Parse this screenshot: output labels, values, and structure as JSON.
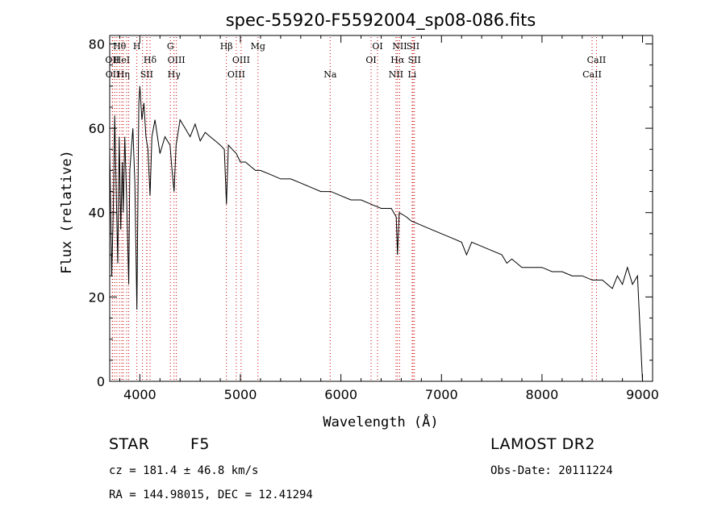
{
  "chart_data": {
    "type": "line",
    "title": "spec-55920-F5592004_sp08-086.fits",
    "xlabel": "Wavelength (Å)",
    "ylabel": "Flux (relative)",
    "xlim": [
      3700,
      9100
    ],
    "ylim": [
      0,
      82
    ],
    "xticks": [
      4000,
      5000,
      6000,
      7000,
      8000,
      9000
    ],
    "yticks": [
      0,
      20,
      40,
      60,
      80
    ],
    "grid": false,
    "series": [
      {
        "x": [
          3700,
          3720,
          3735,
          3750,
          3765,
          3780,
          3795,
          3810,
          3825,
          3835,
          3850,
          3870,
          3889,
          3900,
          3930,
          3950,
          3970,
          3990,
          4000,
          4020,
          4040,
          4060,
          4080,
          4101,
          4120,
          4150,
          4200,
          4250,
          4300,
          4320,
          4340,
          4360,
          4400,
          4450,
          4500,
          4550,
          4600,
          4650,
          4700,
          4750,
          4800,
          4840,
          4861,
          4880,
          4920,
          4960,
          5000,
          5050,
          5100,
          5150,
          5200,
          5300,
          5400,
          5500,
          5600,
          5700,
          5800,
          5900,
          6000,
          6100,
          6200,
          6300,
          6400,
          6500,
          6550,
          6563,
          6580,
          6650,
          6700,
          6800,
          6900,
          7000,
          7100,
          7200,
          7250,
          7300,
          7400,
          7500,
          7600,
          7650,
          7700,
          7800,
          7900,
          8000,
          8100,
          8200,
          8300,
          8400,
          8500,
          8600,
          8700,
          8750,
          8800,
          8850,
          8900,
          8950,
          8980,
          9000
        ],
        "y": [
          55,
          25,
          40,
          63,
          45,
          28,
          58,
          36,
          52,
          40,
          58,
          42,
          23,
          50,
          60,
          47,
          17,
          66,
          70,
          62,
          66,
          58,
          55,
          44,
          58,
          62,
          54,
          58,
          56,
          50,
          45,
          56,
          62,
          60,
          58,
          61,
          57,
          59,
          58,
          57,
          56,
          55,
          42,
          56,
          55,
          54,
          52,
          52,
          51,
          50,
          50,
          49,
          48,
          48,
          47,
          46,
          45,
          45,
          44,
          43,
          43,
          42,
          41,
          41,
          39,
          30,
          40,
          39,
          38,
          37,
          36,
          35,
          34,
          33,
          30,
          33,
          32,
          31,
          30,
          28,
          29,
          27,
          27,
          27,
          26,
          26,
          25,
          25,
          24,
          24,
          22,
          25,
          23,
          27,
          23,
          25,
          10,
          0
        ]
      }
    ],
    "annotations": [
      {
        "wl": 3726,
        "label": "OII",
        "row": 1
      },
      {
        "wl": 3729,
        "label": "OII",
        "row": 2
      },
      {
        "wl": 3750,
        "label": "",
        "row": 0
      },
      {
        "wl": 3771,
        "label": "",
        "row": 0
      },
      {
        "wl": 3798,
        "label": "Hθ",
        "row": 0
      },
      {
        "wl": 3820,
        "label": "HeI",
        "row": 1
      },
      {
        "wl": 3835,
        "label": "Hη",
        "row": 2
      },
      {
        "wl": 3869,
        "label": "",
        "row": 0
      },
      {
        "wl": 3889,
        "label": "",
        "row": 0
      },
      {
        "wl": 3970,
        "label": "H",
        "row": 0
      },
      {
        "wl": 4026,
        "label": "",
        "row": 0
      },
      {
        "wl": 4070,
        "label": "",
        "row": 0
      },
      {
        "wl": 4101,
        "label": "Hδ",
        "row": 1
      },
      {
        "wl": 4068,
        "label": "SII",
        "row": 2
      },
      {
        "wl": 4304,
        "label": "G",
        "row": 0
      },
      {
        "wl": 4340,
        "label": "Hγ",
        "row": 2
      },
      {
        "wl": 4363,
        "label": "OIII",
        "row": 1
      },
      {
        "wl": 4861,
        "label": "Hβ",
        "row": 0
      },
      {
        "wl": 4959,
        "label": "OIII",
        "row": 2
      },
      {
        "wl": 5007,
        "label": "OIII",
        "row": 1
      },
      {
        "wl": 5175,
        "label": "Mg",
        "row": 0
      },
      {
        "wl": 5893,
        "label": "Na",
        "row": 2
      },
      {
        "wl": 6300,
        "label": "OI",
        "row": 1
      },
      {
        "wl": 6364,
        "label": "OI",
        "row": 0
      },
      {
        "wl": 6548,
        "label": "NII",
        "row": 2
      },
      {
        "wl": 6563,
        "label": "Hα",
        "row": 1
      },
      {
        "wl": 6584,
        "label": "NII",
        "row": 0
      },
      {
        "wl": 6708,
        "label": "Li",
        "row": 2
      },
      {
        "wl": 6717,
        "label": "SII",
        "row": 0
      },
      {
        "wl": 6731,
        "label": "SII",
        "row": 1
      },
      {
        "wl": 8498,
        "label": "CaII",
        "row": 2
      },
      {
        "wl": 8542,
        "label": "CaII",
        "row": 1
      }
    ]
  },
  "info": {
    "class": "STAR",
    "subclass": "F5",
    "survey": "LAMOST DR2",
    "cz": "cz = 181.4 ± 46.8 km/s",
    "obs_date": "Obs-Date: 20111224",
    "radec": "RA = 144.98015, DEC =  12.41294"
  },
  "colors": {
    "spectrum": "#000000",
    "line_markers": "#cc0000"
  }
}
